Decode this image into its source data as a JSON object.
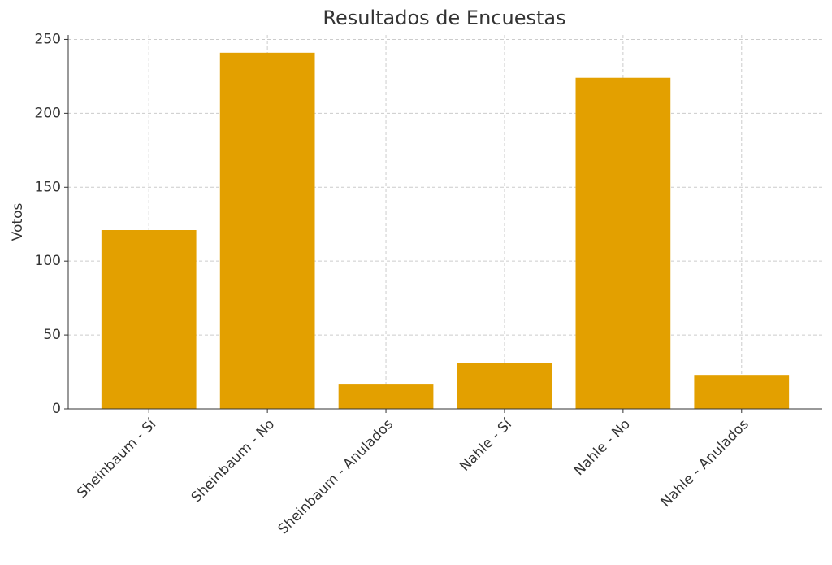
{
  "chart_data": {
    "type": "bar",
    "title": "Resultados de Encuestas",
    "y_label": "Votos",
    "categories": [
      "Sheinbaum - Sí",
      "Sheinbaum - No",
      "Sheinbaum - Anulados",
      "Nahle - Sí",
      "Nahle - No",
      "Nahle - Anulados"
    ],
    "values": [
      121,
      241,
      17,
      31,
      224,
      23
    ],
    "color": "#e3a000",
    "ylim": [
      0,
      253
    ],
    "yticks": [
      0,
      50,
      100,
      150,
      200,
      250
    ],
    "grid": true
  }
}
